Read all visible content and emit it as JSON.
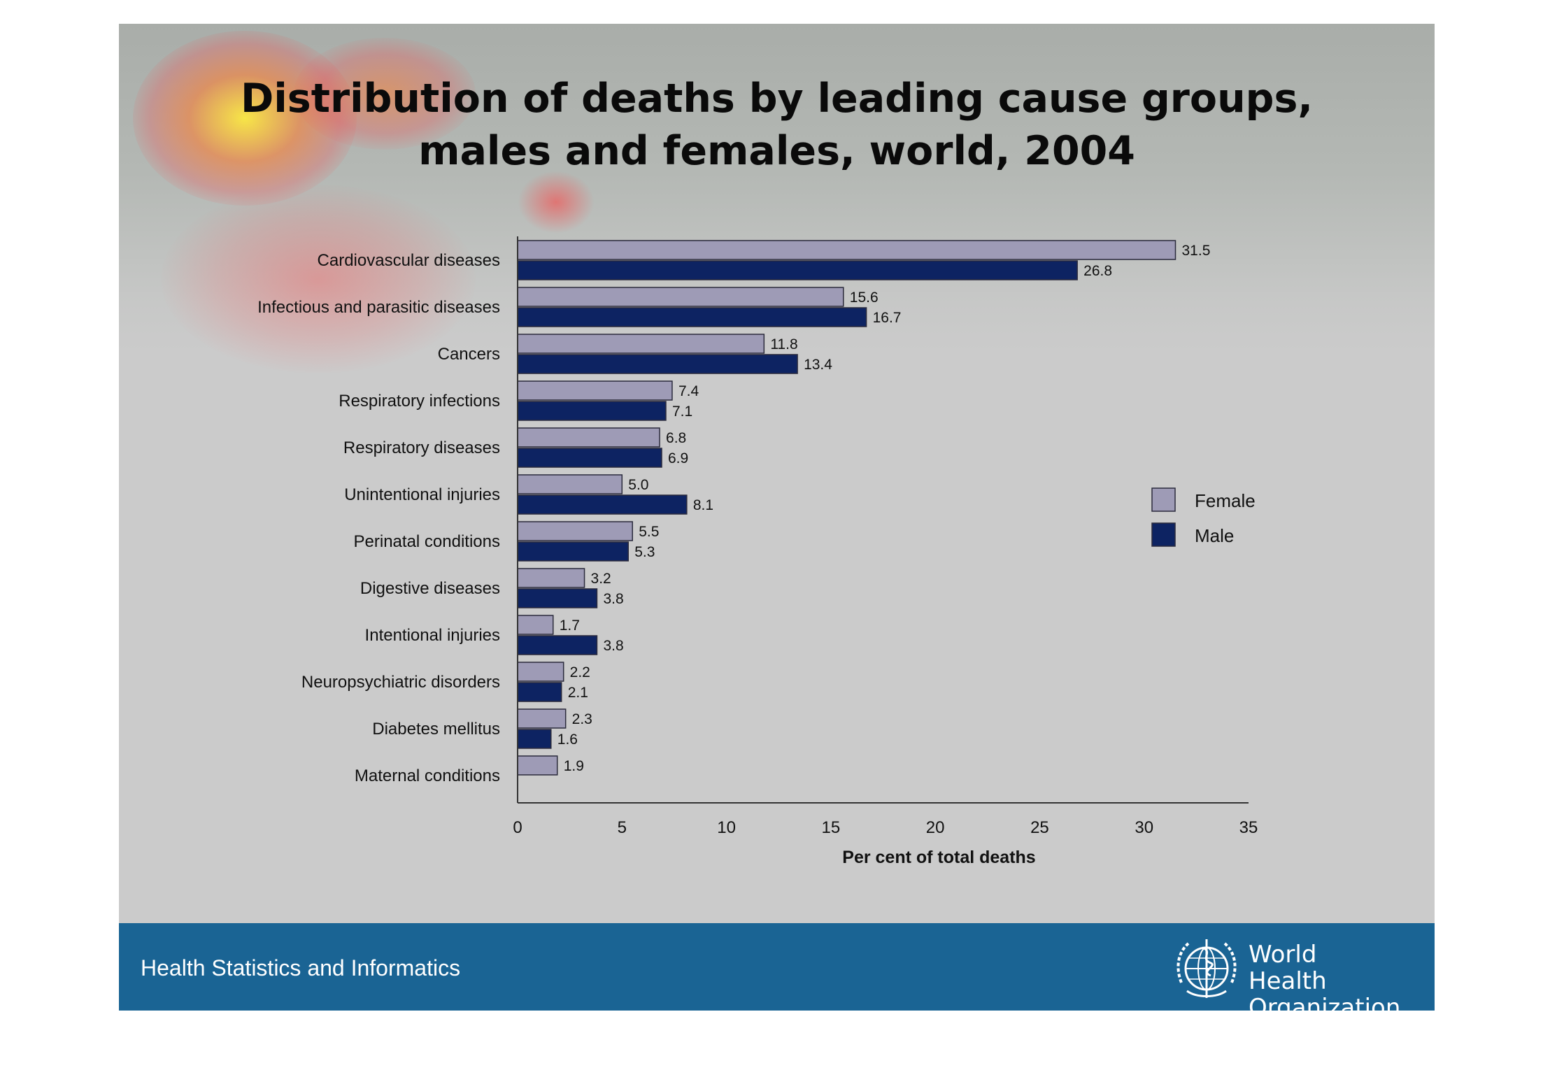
{
  "title_lines": [
    "Distribution of deaths by leading cause groups,",
    "males and females, world, 2004"
  ],
  "footer": {
    "text": "Health Statistics and Informatics",
    "org_line1": "World Health",
    "org_line2": "Organization",
    "logo_icon": "who-emblem-icon"
  },
  "colors": {
    "female": "#9e9bb6",
    "male": "#0d2362",
    "footer": "#1a6494",
    "background": "#cbcbcb"
  },
  "chart_data": {
    "type": "bar",
    "orientation": "horizontal",
    "xlabel": "Per cent of total deaths",
    "xlim": [
      0,
      35
    ],
    "xticks": [
      0,
      5,
      10,
      15,
      20,
      25,
      30,
      35
    ],
    "grid": false,
    "legend_position": "right",
    "categories": [
      "Cardiovascular diseases",
      "Infectious and parasitic diseases",
      "Cancers",
      "Respiratory infections",
      "Respiratory diseases",
      "Unintentional injuries",
      "Perinatal conditions",
      "Digestive diseases",
      "Intentional injuries",
      "Neuropsychiatric disorders",
      "Diabetes mellitus",
      "Maternal conditions"
    ],
    "series": [
      {
        "name": "Female",
        "values": [
          31.5,
          15.6,
          11.8,
          7.4,
          6.8,
          5.0,
          5.5,
          3.2,
          1.7,
          2.2,
          2.3,
          1.9
        ],
        "labels": [
          "31.5",
          "15.6",
          "11.8",
          "7.4",
          "6.8",
          "5.0",
          "5.5",
          "3.2",
          "1.7",
          "2.2",
          "2.3",
          "1.9"
        ]
      },
      {
        "name": "Male",
        "values": [
          26.8,
          16.7,
          13.4,
          7.1,
          6.9,
          8.1,
          5.3,
          3.8,
          3.8,
          2.1,
          1.6,
          null
        ],
        "labels": [
          "26.8",
          "16.7",
          "13.4",
          "7.1",
          "6.9",
          "8.1",
          "5.3",
          "3.8",
          "3.8",
          "2.1",
          "1.6",
          ""
        ]
      }
    ]
  }
}
